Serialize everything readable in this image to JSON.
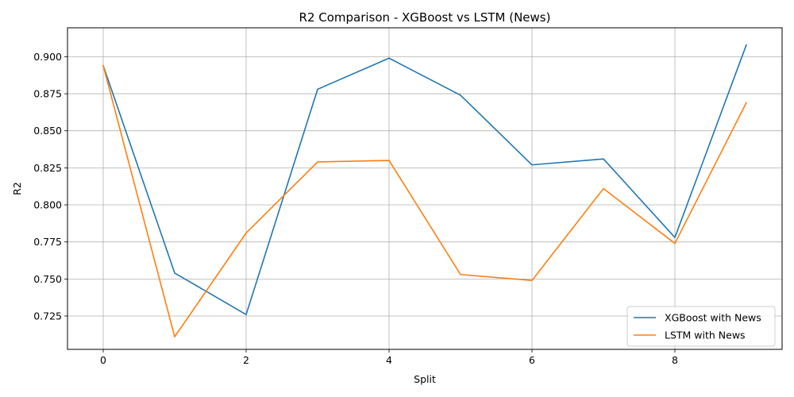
{
  "chart_data": {
    "type": "line",
    "title": "R2 Comparison - XGBoost vs LSTM (News)",
    "xlabel": "Split",
    "ylabel": "R2",
    "x": [
      0,
      1,
      2,
      3,
      4,
      5,
      6,
      7,
      8,
      9
    ],
    "xlim": [
      -0.5,
      9.5
    ],
    "ylim": [
      0.7025,
      0.9195
    ],
    "xticks": [
      0,
      2,
      4,
      6,
      8
    ],
    "yticks": [
      0.725,
      0.75,
      0.775,
      0.8,
      0.825,
      0.85,
      0.875,
      0.9
    ],
    "ytick_labels": [
      "0.725",
      "0.750",
      "0.775",
      "0.800",
      "0.825",
      "0.850",
      "0.875",
      "0.900"
    ],
    "xtick_labels": [
      "0",
      "2",
      "4",
      "6",
      "8"
    ],
    "grid": true,
    "legend_position": "lower-right",
    "series": [
      {
        "name": "XGBoost with News",
        "color": "#1f77b4",
        "values": [
          0.894,
          0.754,
          0.726,
          0.878,
          0.899,
          0.874,
          0.827,
          0.831,
          0.778,
          0.908
        ]
      },
      {
        "name": "LSTM with News",
        "color": "#ff7f0e",
        "values": [
          0.894,
          0.711,
          0.781,
          0.829,
          0.83,
          0.753,
          0.749,
          0.811,
          0.774,
          0.869
        ]
      }
    ]
  }
}
